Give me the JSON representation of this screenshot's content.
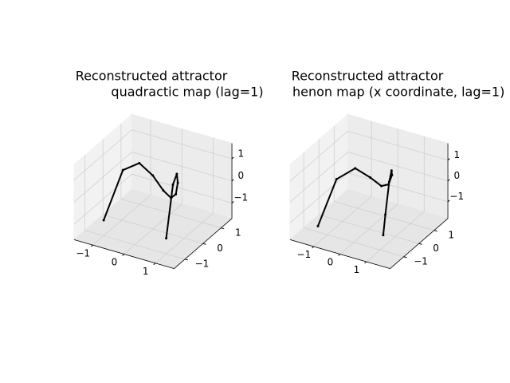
{
  "chart_data": [
    {
      "type": "line3d",
      "title": [
        "Reconstructed attractor",
        "quadractic map (lag=1)"
      ],
      "series": [
        {
          "color": "#000000",
          "x": [
            -1,
            -0.8,
            -0.6,
            -0.4,
            -0.2,
            0,
            0.2,
            0.4,
            0.6,
            0.8,
            1
          ],
          "y": [
            -1,
            -0.28,
            0.28,
            0.68,
            0.92,
            1,
            0.92,
            0.68,
            0.28,
            -0.28,
            -1
          ],
          "z": [
            -1,
            0.84,
            0.84,
            0.08,
            -0.69,
            -1,
            -0.69,
            0.08,
            0.84,
            0.84,
            -1
          ]
        }
      ],
      "xlim": [
        -1.6,
        1.6
      ],
      "ylim": [
        -1.6,
        1.6
      ],
      "zlim": [
        -1.7,
        1.7
      ],
      "xticks": [
        {
          "value": -1,
          "label": "−1"
        },
        0,
        1
      ],
      "yticks": [
        {
          "value": -1,
          "label": "−1"
        },
        0,
        1
      ],
      "zticks": [
        {
          "value": -1,
          "label": "−1"
        },
        0,
        1
      ]
    },
    {
      "type": "line3d",
      "title": [
        "Reconstructed attractor",
        "henon map (x coordinate, lag=1)"
      ],
      "series": [
        {
          "color": "#000000",
          "x": [
            -1.25,
            -1,
            -0.7,
            -0.4,
            -0.1,
            0.2,
            0.5,
            0.8,
            1.0,
            1.2,
            1.27
          ],
          "y": [
            -1.19,
            -0.4,
            0.31,
            0.78,
            0.99,
            0.94,
            0.65,
            0.1,
            -0.4,
            -1.0,
            -1.26
          ],
          "z": [
            -1.36,
            0.48,
            0.66,
            0.03,
            -0.4,
            -0.18,
            0.56,
            1.23,
            1.08,
            -0.04,
            -0.83
          ]
        }
      ],
      "xlim": [
        -1.9,
        1.9
      ],
      "ylim": [
        -1.9,
        1.9
      ],
      "zlim": [
        -1.8,
        1.8
      ],
      "xticks": [
        {
          "value": -1,
          "label": "−1"
        },
        0,
        1
      ],
      "yticks": [
        {
          "value": -1,
          "label": "−1"
        },
        0,
        1
      ],
      "zticks": [
        {
          "value": -1,
          "label": "−1"
        },
        0,
        1
      ]
    }
  ]
}
